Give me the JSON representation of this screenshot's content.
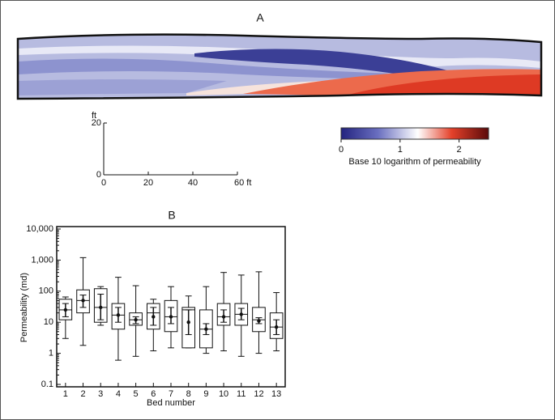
{
  "panel_a": {
    "title": "A",
    "scale": {
      "xlim": [
        0,
        60
      ],
      "xticks": [
        0,
        20,
        40,
        {
          "value": 60,
          "label": "60 ft"
        }
      ],
      "ylim": [
        0,
        20
      ],
      "yticks": [
        0,
        20
      ],
      "ylabel": "ft"
    },
    "colorbar": {
      "label": "Base 10 logarithm of permeability",
      "lim": [
        0,
        2.5
      ],
      "ticks": [
        0,
        1,
        2
      ]
    }
  },
  "chart_data": {
    "type": "box",
    "title": "B",
    "xlabel": "Bed number",
    "ylabel": "Permeability (md)",
    "categories": [
      "1",
      "2",
      "3",
      "4",
      "5",
      "6",
      "7",
      "8",
      "9",
      "10",
      "11",
      "12",
      "13"
    ],
    "min": [
      3,
      1.8,
      8,
      0.6,
      0.8,
      1.2,
      1.5,
      1.5,
      1,
      1.2,
      0.8,
      1,
      1.2
    ],
    "q1": [
      12,
      20,
      10,
      6,
      8,
      6,
      5,
      1.5,
      1.5,
      8,
      8,
      5,
      3
    ],
    "median": [
      25,
      50,
      30,
      17,
      12,
      20,
      15,
      25,
      6,
      15,
      18,
      12,
      7
    ],
    "q3": [
      55,
      110,
      120,
      40,
      20,
      40,
      50,
      30,
      25,
      40,
      40,
      30,
      20
    ],
    "max": [
      65,
      1200,
      140,
      280,
      150,
      55,
      140,
      70,
      140,
      400,
      330,
      420,
      90
    ],
    "mean": [
      25,
      50,
      30,
      17,
      12,
      15,
      15,
      10,
      6,
      15,
      18,
      11,
      7
    ],
    "mean_low": [
      15,
      30,
      12,
      10,
      9,
      8,
      9,
      4,
      4,
      10,
      12,
      9,
      4
    ],
    "mean_high": [
      40,
      75,
      80,
      30,
      15,
      30,
      30,
      25,
      9,
      25,
      28,
      14,
      12
    ],
    "log_y": true,
    "ylim": [
      0.1,
      10000
    ],
    "yticks": [
      0.1,
      1,
      10,
      100,
      {
        "value": 1000,
        "label": "1,000"
      },
      {
        "value": 10000,
        "label": "10,000"
      }
    ]
  }
}
